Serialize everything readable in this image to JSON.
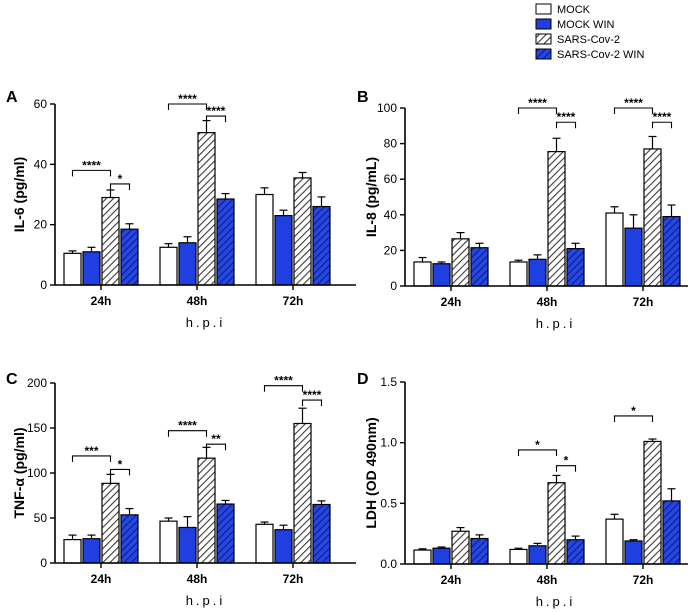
{
  "legend": [
    {
      "label": "MOCK",
      "style": "white"
    },
    {
      "label": "MOCK WIN",
      "style": "blue"
    },
    {
      "label": "SARS-Cov-2",
      "style": "hatch-gray"
    },
    {
      "label": "SARS-Cov-2 WIN",
      "style": "hatch-blue"
    }
  ],
  "colors": {
    "blue": "#1f3fe0",
    "hatch_blue_bg": "#2646e6",
    "hatch_blue_line": "#0c1f7a",
    "hatch_gray_line": "#3a3a3a",
    "axis": "#000000"
  },
  "chart_data": [
    {
      "type": "bar",
      "panel_letter": "A",
      "ylabel": "IL-6 (pg/ml)",
      "xlabel": "h.p.i",
      "ylim": [
        0,
        60
      ],
      "ticks": [
        "0",
        "20",
        "40",
        "60"
      ],
      "tick_values": [
        0,
        20,
        40,
        60
      ],
      "categories": [
        "24h",
        "48h",
        "72h"
      ],
      "series": [
        {
          "name": "MOCK",
          "values": [
            10.5,
            12.5,
            30
          ],
          "errors": [
            0.8,
            1.2,
            2.2
          ]
        },
        {
          "name": "MOCK WIN",
          "values": [
            11,
            14,
            23
          ],
          "errors": [
            1.5,
            2.0,
            1.8
          ]
        },
        {
          "name": "SARS-Cov-2",
          "values": [
            29,
            50.5,
            35.5
          ],
          "errors": [
            2.5,
            4.0,
            1.8
          ]
        },
        {
          "name": "SARS-Cov-2 WIN",
          "values": [
            18.5,
            28.5,
            26
          ],
          "errors": [
            1.8,
            1.8,
            3.2
          ]
        }
      ],
      "significance": [
        {
          "group": 0,
          "from": 0,
          "to": 2,
          "label": "****",
          "y": 38
        },
        {
          "group": 0,
          "from": 2,
          "to": 3,
          "label": "*",
          "y": 33.5
        },
        {
          "group": 1,
          "from": 0,
          "to": 2,
          "label": "****",
          "y": 60
        },
        {
          "group": 1,
          "from": 2,
          "to": 3,
          "label": "****",
          "y": 56
        }
      ]
    },
    {
      "type": "bar",
      "panel_letter": "B",
      "ylabel": "IL-8 (pg/mL)",
      "xlabel": "h.p.i",
      "ylim": [
        0,
        100
      ],
      "ticks": [
        "0",
        "20",
        "40",
        "60",
        "80",
        "100"
      ],
      "tick_values": [
        0,
        20,
        40,
        60,
        80,
        100
      ],
      "categories": [
        "24h",
        "48h",
        "72h"
      ],
      "series": [
        {
          "name": "MOCK",
          "values": [
            13.5,
            13.5,
            41
          ],
          "errors": [
            2.5,
            1.0,
            3.5
          ]
        },
        {
          "name": "MOCK WIN",
          "values": [
            12.5,
            15,
            32.5
          ],
          "errors": [
            1.0,
            2.5,
            7.5
          ]
        },
        {
          "name": "SARS-Cov-2",
          "values": [
            26.5,
            75.5,
            77
          ],
          "errors": [
            3.5,
            7.5,
            7.0
          ]
        },
        {
          "name": "SARS-Cov-2 WIN",
          "values": [
            21.5,
            21,
            39
          ],
          "errors": [
            2.5,
            3.0,
            6.5
          ]
        }
      ],
      "significance": [
        {
          "group": 1,
          "from": 0,
          "to": 2,
          "label": "****",
          "y": 100
        },
        {
          "group": 1,
          "from": 2,
          "to": 3,
          "label": "****",
          "y": 92
        },
        {
          "group": 2,
          "from": 0,
          "to": 2,
          "label": "****",
          "y": 100
        },
        {
          "group": 2,
          "from": 2,
          "to": 3,
          "label": "****",
          "y": 92
        }
      ]
    },
    {
      "type": "bar",
      "panel_letter": "C",
      "ylabel": "TNF-α (pg/ml)",
      "xlabel": "h.p.i",
      "ylim": [
        0,
        200
      ],
      "ticks": [
        "0",
        "50",
        "100",
        "150",
        "200"
      ],
      "tick_values": [
        0,
        50,
        100,
        150,
        200
      ],
      "categories": [
        "24h",
        "48h",
        "72h"
      ],
      "series": [
        {
          "name": "MOCK",
          "values": [
            26,
            46.5,
            43
          ],
          "errors": [
            5,
            3.5,
            2.5
          ]
        },
        {
          "name": "MOCK WIN",
          "values": [
            27,
            39.5,
            37
          ],
          "errors": [
            4,
            12,
            5
          ]
        },
        {
          "name": "SARS-Cov-2",
          "values": [
            88.5,
            116.5,
            155
          ],
          "errors": [
            10,
            12,
            17
          ]
        },
        {
          "name": "SARS-Cov-2 WIN",
          "values": [
            53.5,
            65.5,
            65
          ],
          "errors": [
            7,
            4,
            4
          ]
        }
      ],
      "significance": [
        {
          "group": 0,
          "from": 0,
          "to": 2,
          "label": "***",
          "y": 119
        },
        {
          "group": 0,
          "from": 2,
          "to": 3,
          "label": "*",
          "y": 104
        },
        {
          "group": 1,
          "from": 0,
          "to": 2,
          "label": "****",
          "y": 147
        },
        {
          "group": 1,
          "from": 2,
          "to": 3,
          "label": "**",
          "y": 132
        },
        {
          "group": 2,
          "from": 0,
          "to": 2,
          "label": "****",
          "y": 197
        },
        {
          "group": 2,
          "from": 2,
          "to": 3,
          "label": "****",
          "y": 181
        }
      ]
    },
    {
      "type": "bar",
      "panel_letter": "D",
      "ylabel": "LDH (OD 490nm)",
      "xlabel": "h.p.i",
      "ylim": [
        0,
        1.5
      ],
      "ticks": [
        "0.0",
        "0.5",
        "1.0",
        "1.5"
      ],
      "tick_values": [
        0,
        0.5,
        1.0,
        1.5
      ],
      "categories": [
        "24h",
        "48h",
        "72h"
      ],
      "series": [
        {
          "name": "MOCK",
          "values": [
            0.115,
            0.12,
            0.37
          ],
          "errors": [
            0.01,
            0.01,
            0.04
          ]
        },
        {
          "name": "MOCK WIN",
          "values": [
            0.13,
            0.15,
            0.19
          ],
          "errors": [
            0.01,
            0.02,
            0.01
          ]
        },
        {
          "name": "SARS-Cov-2",
          "values": [
            0.27,
            0.67,
            1.01
          ],
          "errors": [
            0.03,
            0.06,
            0.02
          ]
        },
        {
          "name": "SARS-Cov-2 WIN",
          "values": [
            0.21,
            0.2,
            0.52
          ],
          "errors": [
            0.03,
            0.03,
            0.1
          ]
        }
      ],
      "significance": [
        {
          "group": 1,
          "from": 0,
          "to": 2,
          "label": "*",
          "y": 0.94
        },
        {
          "group": 1,
          "from": 2,
          "to": 3,
          "label": "*",
          "y": 0.81
        },
        {
          "group": 2,
          "from": 0,
          "to": 2,
          "label": "*",
          "y": 1.22
        }
      ]
    }
  ]
}
